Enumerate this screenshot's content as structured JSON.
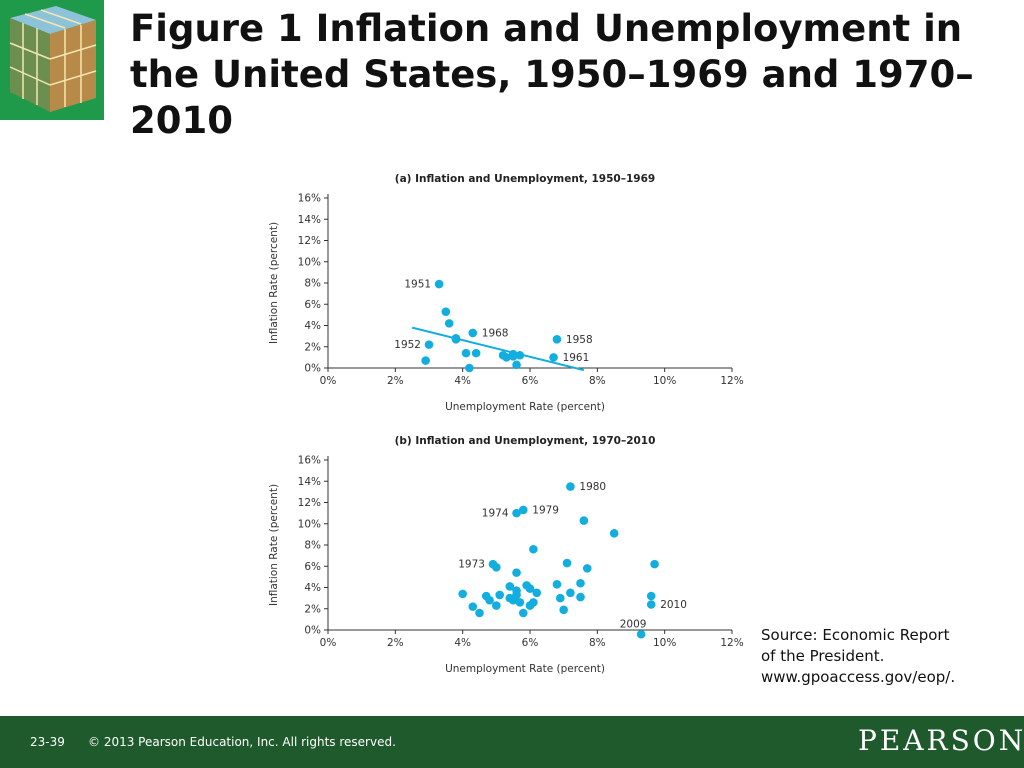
{
  "slide": {
    "title": "Figure 1  Inflation and Unemployment in the United States, 1950–1969 and 1970–2010"
  },
  "source": {
    "line1": "Source: Economic Report",
    "line2": "of the President.",
    "line3": "www.gpoaccess.gov/eop/."
  },
  "footer": {
    "slide_number": "23-39",
    "copyright": "© 2013 Pearson Education, Inc. All rights reserved.",
    "brand": "PEARSON"
  },
  "colors": {
    "point": "#12aee0",
    "trendline": "#12aee0",
    "footer_bg": "#1f5a2c",
    "logo_bg": "#1f9a4a"
  },
  "chart_data": [
    {
      "type": "scatter",
      "title": "(a) Inflation and Unemployment, 1950–1969",
      "xlabel": "Unemployment Rate (percent)",
      "ylabel": "Inflation Rate (percent)",
      "xlim": [
        0,
        12
      ],
      "ylim": [
        0,
        16
      ],
      "xticks": [
        "0%",
        "2%",
        "4%",
        "6%",
        "8%",
        "10%",
        "12%"
      ],
      "yticks": [
        "0%",
        "2%",
        "4%",
        "6%",
        "8%",
        "10%",
        "12%",
        "14%",
        "16%"
      ],
      "trendline": {
        "x": [
          2.5,
          7.6
        ],
        "y": [
          3.8,
          -0.2
        ]
      },
      "points": [
        {
          "x": 3.3,
          "y": 7.9,
          "label": "1951"
        },
        {
          "x": 3.0,
          "y": 2.2,
          "label": "1952"
        },
        {
          "x": 2.9,
          "y": 0.7
        },
        {
          "x": 3.5,
          "y": 5.3
        },
        {
          "x": 3.6,
          "y": 4.2
        },
        {
          "x": 3.8,
          "y": 2.8
        },
        {
          "x": 3.8,
          "y": 2.7
        },
        {
          "x": 4.1,
          "y": 1.4
        },
        {
          "x": 4.2,
          "y": 0.0
        },
        {
          "x": 4.4,
          "y": 1.4
        },
        {
          "x": 4.3,
          "y": 3.3,
          "label": "1968"
        },
        {
          "x": 5.2,
          "y": 1.2
        },
        {
          "x": 5.3,
          "y": 1.0
        },
        {
          "x": 5.5,
          "y": 1.3
        },
        {
          "x": 5.5,
          "y": 1.1
        },
        {
          "x": 5.6,
          "y": 0.3
        },
        {
          "x": 5.7,
          "y": 1.2
        },
        {
          "x": 6.8,
          "y": 2.7,
          "label": "1958"
        },
        {
          "x": 6.7,
          "y": 1.0,
          "label": "1961"
        }
      ]
    },
    {
      "type": "scatter",
      "title": "(b) Inflation and Unemployment, 1970–2010",
      "xlabel": "Unemployment Rate (percent)",
      "ylabel": "Inflation Rate (percent)",
      "xlim": [
        0,
        12
      ],
      "ylim": [
        0,
        16
      ],
      "xticks": [
        "0%",
        "2%",
        "4%",
        "6%",
        "8%",
        "10%",
        "12%"
      ],
      "yticks": [
        "0%",
        "2%",
        "4%",
        "6%",
        "8%",
        "10%",
        "12%",
        "14%",
        "16%"
      ],
      "points": [
        {
          "x": 7.2,
          "y": 13.5,
          "label": "1980"
        },
        {
          "x": 5.6,
          "y": 11.0,
          "label": "1974"
        },
        {
          "x": 5.8,
          "y": 11.3,
          "label": "1979"
        },
        {
          "x": 7.6,
          "y": 10.3
        },
        {
          "x": 8.5,
          "y": 9.1
        },
        {
          "x": 6.1,
          "y": 7.6
        },
        {
          "x": 4.9,
          "y": 6.2,
          "label": "1973"
        },
        {
          "x": 5.0,
          "y": 5.9
        },
        {
          "x": 7.1,
          "y": 6.3
        },
        {
          "x": 9.7,
          "y": 6.2
        },
        {
          "x": 5.6,
          "y": 5.4
        },
        {
          "x": 7.7,
          "y": 5.8
        },
        {
          "x": 5.4,
          "y": 4.1
        },
        {
          "x": 5.9,
          "y": 4.2
        },
        {
          "x": 6.0,
          "y": 3.9
        },
        {
          "x": 5.6,
          "y": 3.7
        },
        {
          "x": 6.8,
          "y": 4.3
        },
        {
          "x": 7.5,
          "y": 4.4
        },
        {
          "x": 4.0,
          "y": 3.4
        },
        {
          "x": 4.7,
          "y": 3.2
        },
        {
          "x": 5.1,
          "y": 3.3
        },
        {
          "x": 5.4,
          "y": 3.0
        },
        {
          "x": 5.6,
          "y": 3.3
        },
        {
          "x": 6.2,
          "y": 3.5
        },
        {
          "x": 7.2,
          "y": 3.5
        },
        {
          "x": 6.9,
          "y": 3.0
        },
        {
          "x": 7.5,
          "y": 3.1
        },
        {
          "x": 4.8,
          "y": 2.8
        },
        {
          "x": 5.5,
          "y": 2.8
        },
        {
          "x": 5.7,
          "y": 2.6
        },
        {
          "x": 4.3,
          "y": 2.2
        },
        {
          "x": 5.0,
          "y": 2.3
        },
        {
          "x": 6.0,
          "y": 2.3
        },
        {
          "x": 6.1,
          "y": 2.6
        },
        {
          "x": 7.0,
          "y": 1.9
        },
        {
          "x": 4.5,
          "y": 1.6
        },
        {
          "x": 5.8,
          "y": 1.6
        },
        {
          "x": 9.6,
          "y": 3.2
        },
        {
          "x": 9.6,
          "y": 2.4,
          "label": "2010"
        },
        {
          "x": 9.3,
          "y": -0.4,
          "label": "2009"
        }
      ]
    }
  ]
}
